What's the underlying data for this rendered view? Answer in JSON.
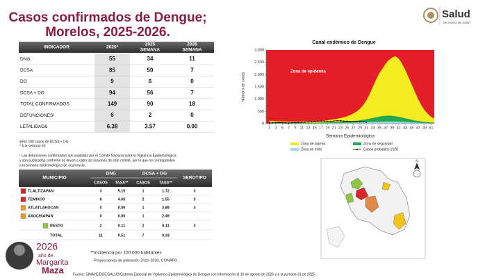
{
  "header": {
    "title": [
      "Casos confirmados de Dengue;",
      "Morelos, 2025-2026."
    ]
  },
  "logo": {
    "name": "Salud",
    "subtitle": "Secretaría de Salud"
  },
  "table1": {
    "columns": [
      [
        "INDICADOR"
      ],
      [
        "2025*"
      ],
      [
        "2025",
        "SEMANA"
      ],
      [
        "2026",
        "SEMANA"
      ]
    ],
    "rows": [
      [
        "DNG",
        "55",
        "34",
        "11"
      ],
      [
        "DCSA",
        "85",
        "50",
        "7"
      ],
      [
        "DG",
        "9",
        "6",
        "0"
      ],
      [
        "DCSA + DG",
        "94",
        "56",
        "7"
      ],
      [
        "TOTAL CONFIRMADOS",
        "149",
        "90",
        "18"
      ],
      [
        "DEFUNCIONES¹",
        "6",
        "2",
        "0"
      ],
      [
        "LETALIDAD&",
        "6.38",
        "3.57",
        "0.00"
      ]
    ]
  },
  "notes": [
    "&Por 100 casos de DCSA + DG.",
    "* A la semana 53",
    "¹ Las defunciones confirmadas son avaladas por el Comité Nacional para la Vigilancia Epidemiológica",
    "y son publicadas conforme se llevan a cabo las sesiones de este comité, por lo que no corresponden",
    "a la semana epidemiológica de ocurrencia."
  ],
  "table2": {
    "groups": [
      "MUNICIPIO",
      "DNG",
      "DCSA + DG",
      "SEROTIPO"
    ],
    "subcolumns": [
      "CASOS",
      "TASA**",
      "CASOS",
      "TASA**"
    ],
    "rows": [
      [
        "TLALTIZAPAN",
        "3",
        "5.15",
        "1",
        "1.72",
        "3"
      ],
      [
        "TEMIXCO",
        "6",
        "4.65",
        "2",
        "1.55",
        "3"
      ],
      [
        "ATLATLAHUCAN",
        "0",
        "0.00",
        "1",
        "3.89",
        "3"
      ],
      [
        "AXOCHIAPAN",
        "0",
        "0.00",
        "1",
        "2.49",
        null
      ],
      [
        "RESTO",
        "2",
        "0.11",
        "2",
        "0.11",
        "3"
      ],
      [
        "TOTAL",
        "11",
        "0.51",
        "7",
        "0.33",
        null
      ]
    ],
    "row_colors": [
      "#d7262b",
      "#d7262b",
      "#e79b2c",
      "#e79b2c",
      "#8dc63f",
      null
    ]
  },
  "footnotes": [
    "**Incidencia por 100 000 habitantes",
    "Proyecciones de población 2010-2030,  CONAPO."
  ],
  "logo2": {
    "year": "2026",
    "line1": "año de",
    "line2": "Margarita",
    "line3": "Maza"
  },
  "source": "Fuente: SINAVE/DGE/SALUD/Sistema Especial de Vigilancia Epidemiológica de Dengue con Información al 10 de agosto de 2026 y a la semana 31 de 2025.",
  "map": {
    "compass": "N"
  },
  "chart_data": {
    "type": "area",
    "title": "Canal endémico de Dengue",
    "y_label": "Número de casos",
    "x_label": "Semana Epidemiológica",
    "annotation": "Zona de epidemia",
    "epidemic_color": "#e41e26",
    "x": [
      1,
      2,
      3,
      4,
      5,
      6,
      7,
      8,
      9,
      10,
      11,
      12,
      13,
      14,
      15,
      16,
      17,
      18,
      19,
      20,
      21,
      22,
      23,
      24,
      25,
      26,
      27,
      28,
      29,
      30,
      31,
      32,
      33,
      34,
      35,
      36,
      37,
      38,
      39,
      40,
      41,
      42,
      43,
      44,
      45,
      46,
      47,
      48,
      49,
      50,
      51,
      52
    ],
    "xlim": [
      0,
      52
    ],
    "xticks": [
      1,
      3,
      5,
      7,
      9,
      11,
      13,
      15,
      17,
      19,
      21,
      23,
      25,
      27,
      29,
      31,
      33,
      35,
      37,
      39,
      41,
      43,
      45,
      47,
      49,
      51
    ],
    "ylim": [
      0,
      3000
    ],
    "yticks": [
      0,
      500,
      {
        "value": 1000,
        "label": "1,000"
      },
      {
        "value": 1500,
        "label": "1,500"
      },
      {
        "value": 2000,
        "label": "2,000"
      },
      {
        "value": 2500,
        "label": "2,500"
      },
      {
        "value": 3000,
        "label": "3,000"
      }
    ],
    "series": [
      {
        "name": "Zona de alarma",
        "color": "#f3ec1f",
        "kind": "area",
        "values": [
          120,
          110,
          100,
          95,
          90,
          85,
          80,
          80,
          80,
          85,
          90,
          95,
          100,
          100,
          105,
          110,
          120,
          130,
          140,
          160,
          180,
          200,
          230,
          260,
          300,
          350,
          420,
          500,
          600,
          750,
          950,
          1200,
          1500,
          1800,
          2050,
          2250,
          2450,
          2600,
          2700,
          2750,
          2650,
          2450,
          2200,
          1900,
          1600,
          1300,
          1000,
          750,
          550,
          400,
          280,
          200
        ]
      },
      {
        "name": "Zona de seguridad",
        "color": "#1fa84d",
        "kind": "area",
        "values": [
          40,
          38,
          36,
          34,
          32,
          30,
          30,
          30,
          30,
          30,
          32,
          34,
          36,
          38,
          40,
          42,
          45,
          48,
          50,
          55,
          60,
          65,
          70,
          80,
          90,
          100,
          110,
          120,
          140,
          160,
          180,
          200,
          230,
          260,
          290,
          310,
          320,
          330,
          320,
          300,
          280,
          250,
          220,
          190,
          160,
          130,
          110,
          90,
          70,
          60,
          50,
          45
        ]
      },
      {
        "name": "Zona de éxito",
        "color": "#a6d5e6",
        "kind": "area",
        "values": [
          15,
          14,
          13,
          12,
          12,
          11,
          11,
          11,
          11,
          12,
          12,
          13,
          14,
          15,
          16,
          17,
          18,
          20,
          22,
          24,
          26,
          28,
          30,
          33,
          36,
          40,
          44,
          48,
          52,
          56,
          60,
          64,
          68,
          72,
          76,
          80,
          84,
          88,
          90,
          88,
          84,
          78,
          70,
          62,
          54,
          46,
          38,
          32,
          26,
          22,
          18,
          16
        ]
      },
      {
        "name": "Casos probables 2026",
        "color": "#000000",
        "kind": "line",
        "values": [
          30,
          35,
          40,
          45,
          40,
          35,
          30,
          35,
          40,
          45,
          50,
          60,
          70,
          80,
          90,
          100,
          110,
          105,
          100,
          95,
          110,
          120,
          115,
          105,
          100,
          90,
          85,
          80,
          75,
          70,
          60,
          null,
          null,
          null,
          null,
          null,
          null,
          null,
          null,
          null,
          null,
          null,
          null,
          null,
          null,
          null,
          null,
          null,
          null,
          null,
          null,
          null
        ]
      }
    ]
  }
}
